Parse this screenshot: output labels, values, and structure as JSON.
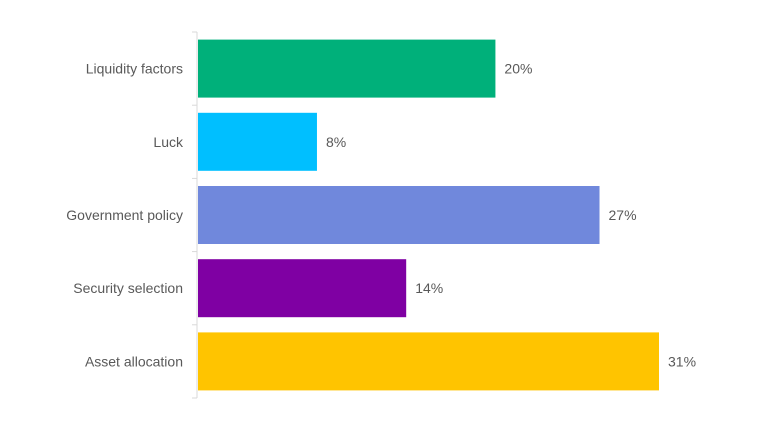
{
  "chart_data": {
    "type": "bar",
    "orientation": "horizontal",
    "title": "",
    "xlabel": "",
    "ylabel": "",
    "categories": [
      "Liquidity factors",
      "Luck",
      "Government policy",
      "Security selection",
      "Asset allocation"
    ],
    "values": [
      20,
      8,
      27,
      14,
      31
    ],
    "value_labels": [
      "20%",
      "8%",
      "27%",
      "14%",
      "31%"
    ],
    "unit": "%",
    "xlim": [
      0,
      31
    ],
    "grid": false,
    "legend": "none",
    "colors": [
      "#00b07a",
      "#00bfff",
      "#7088dc",
      "#7f00a3",
      "#ffc400"
    ],
    "axis_color": "#d9d9d9",
    "label_color": "#595959"
  }
}
